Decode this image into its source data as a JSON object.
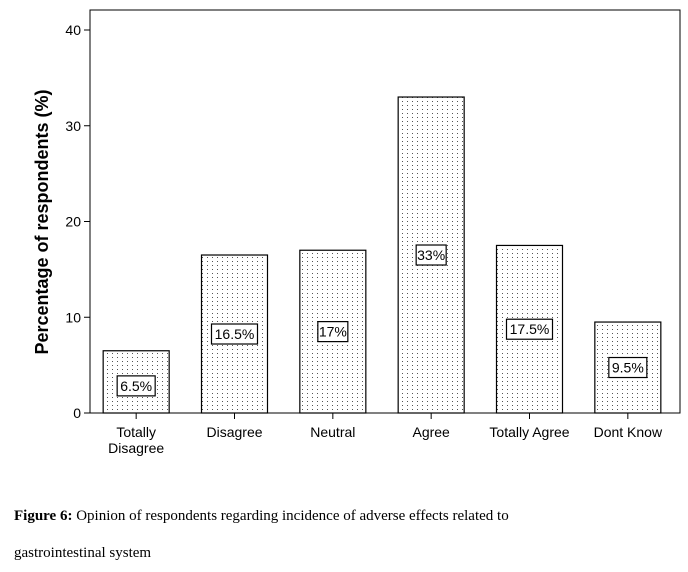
{
  "chart_data": {
    "type": "bar",
    "ylabel": "Percentage of respondents (%)",
    "xlabel": "",
    "ylim": [
      0,
      40
    ],
    "yticks": [
      0,
      10,
      20,
      30,
      40
    ],
    "grid": false,
    "categories": [
      [
        "Totally",
        "Disagree"
      ],
      [
        "Disagree"
      ],
      [
        "Neutral"
      ],
      [
        "Agree"
      ],
      [
        "Totally Agree"
      ],
      [
        "Dont Know"
      ]
    ],
    "values": [
      6.5,
      16.5,
      17,
      33,
      17.5,
      9.5
    ],
    "data_labels": [
      "6.5%",
      "16.5%",
      "17%",
      "33%",
      "17.5%",
      "9.5%"
    ],
    "bar_fill": "dotted"
  },
  "caption": {
    "label": "Figure 6:",
    "line1": " Opinion of respondents regarding incidence of adverse effects related to",
    "line2": "gastrointestinal system"
  },
  "colors": {
    "bar_stroke": "#000000",
    "dots": "#555555",
    "background": "#ffffff"
  }
}
